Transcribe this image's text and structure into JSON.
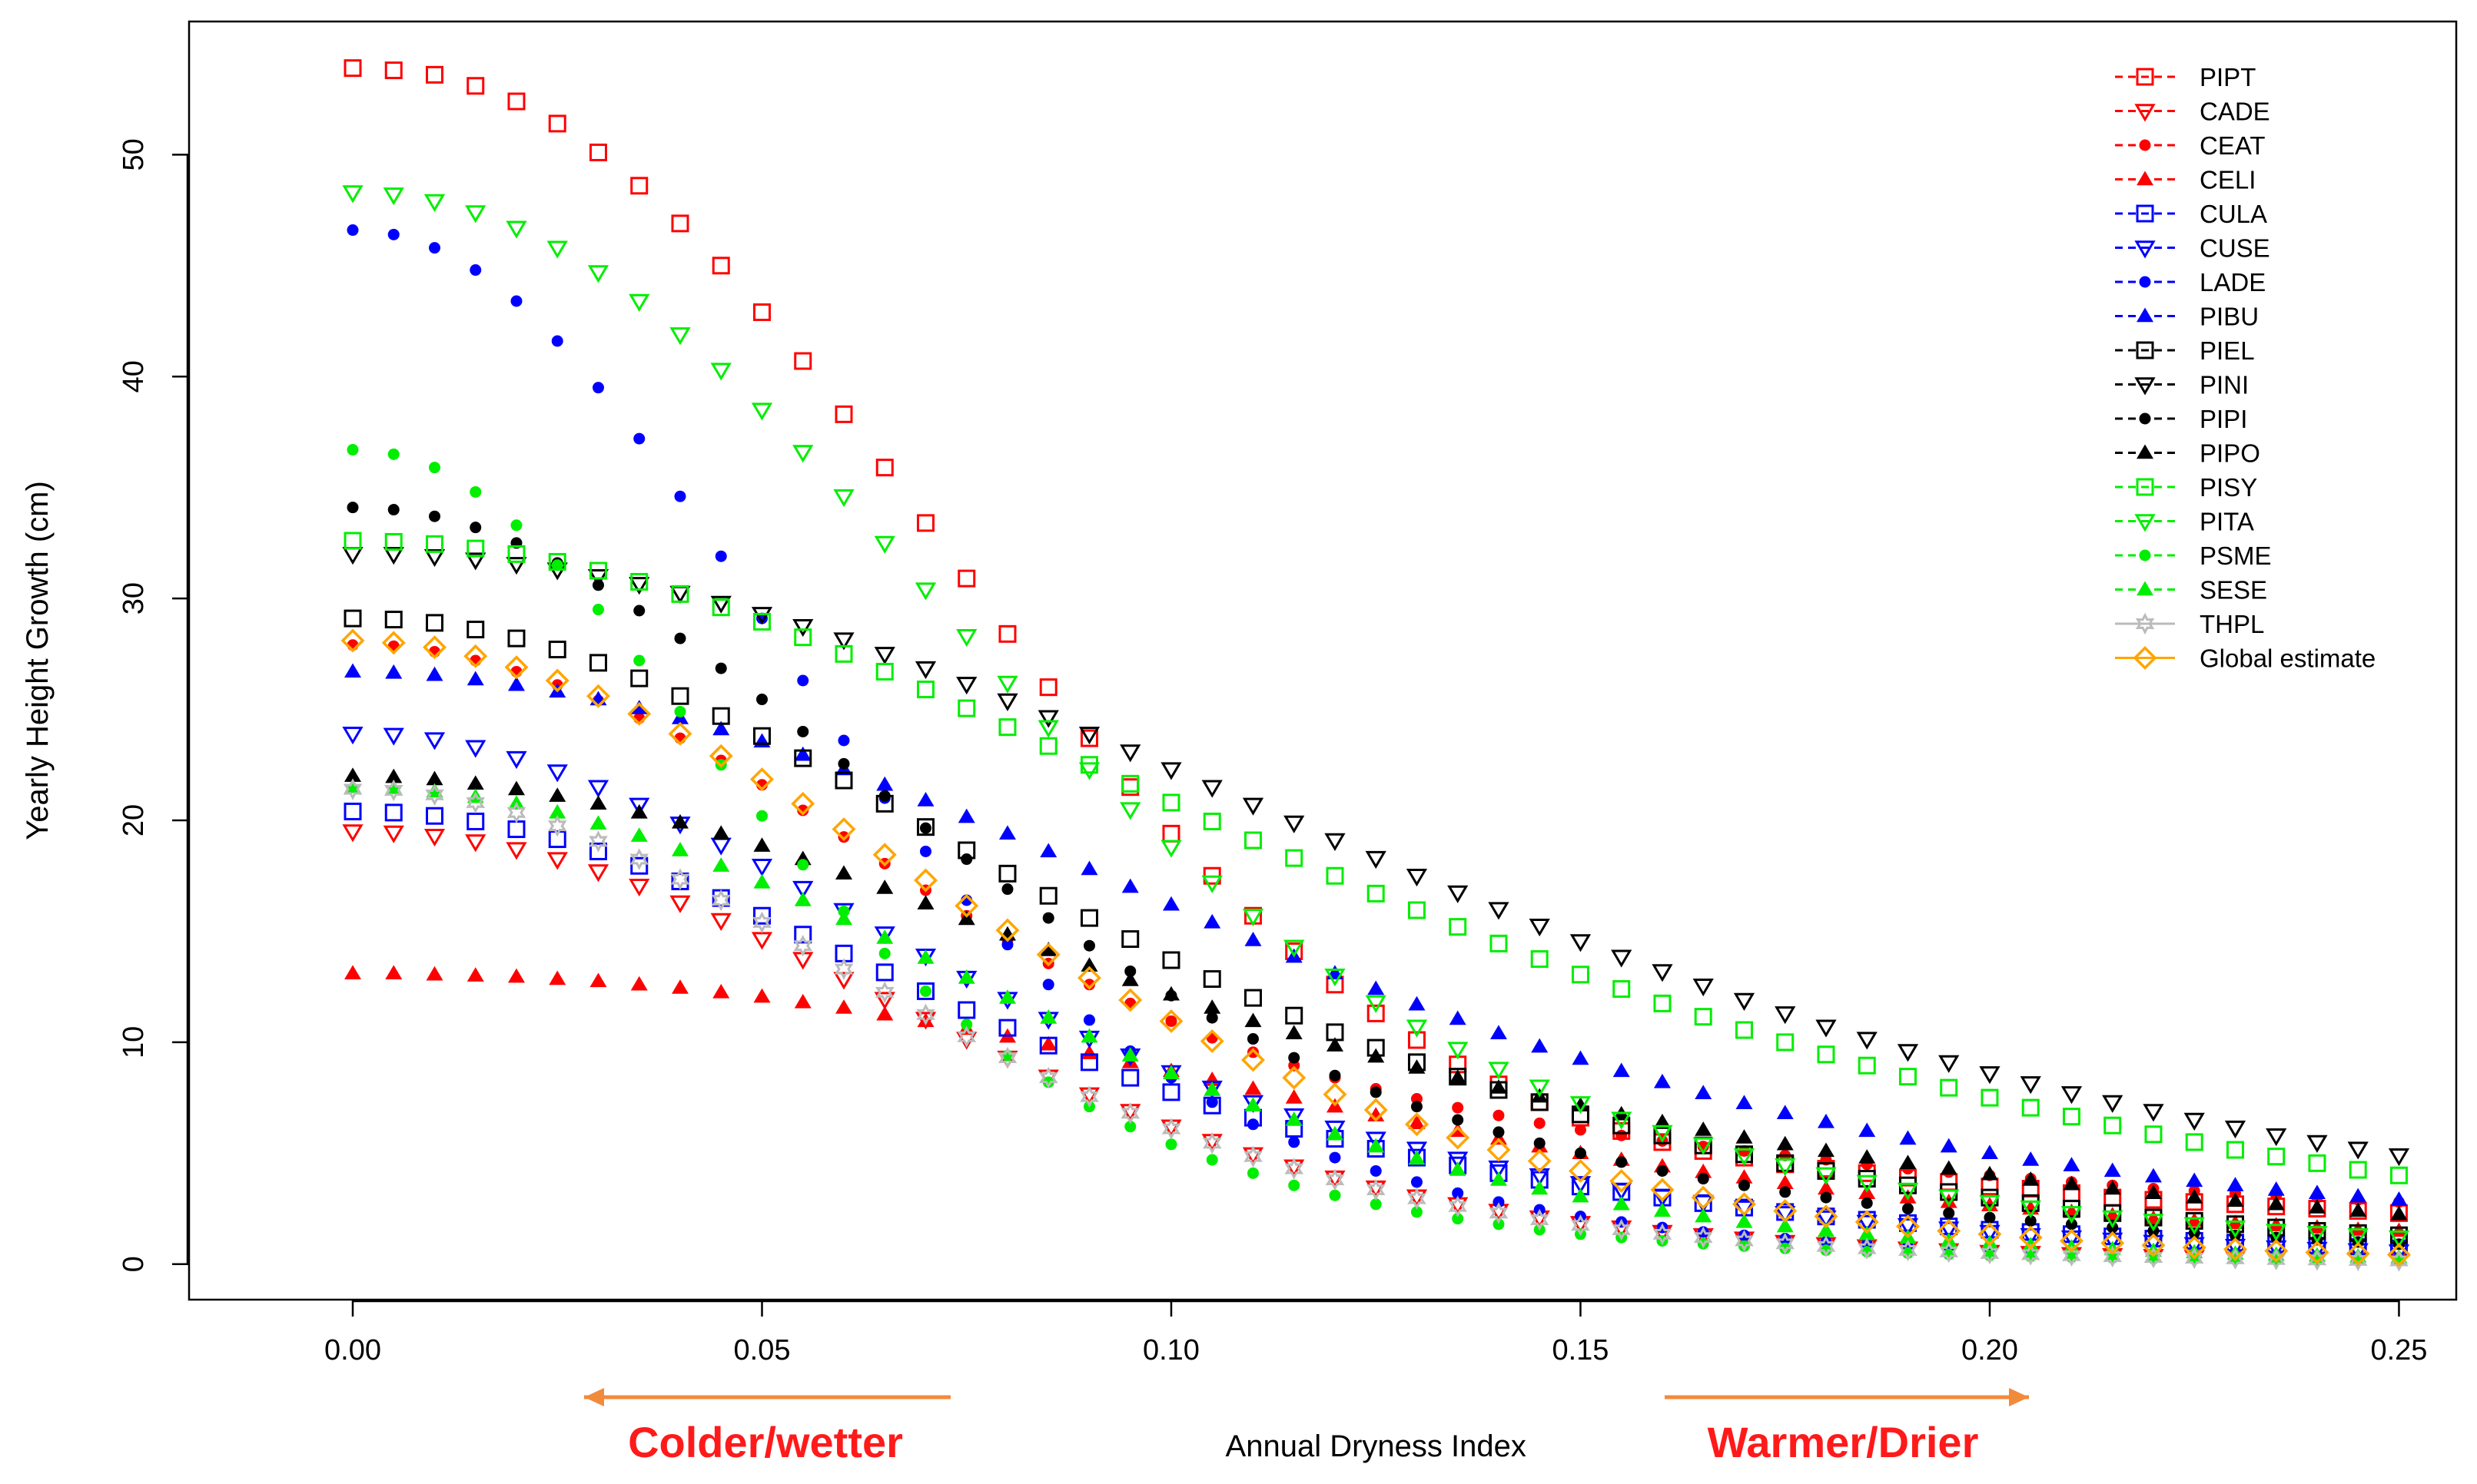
{
  "chart_data": {
    "type": "scatter",
    "title": "",
    "xlabel": "Annual Dryness Index",
    "ylabel": "Yearly Height Growth (cm)",
    "xlim": [
      -0.02,
      0.257
    ],
    "ylim": [
      -1.6,
      56
    ],
    "xticks": [
      0.0,
      0.05,
      0.1,
      0.15,
      0.2,
      0.25
    ],
    "xtick_labels": [
      "0.00",
      "0.05",
      "0.10",
      "0.15",
      "0.20",
      "0.25"
    ],
    "yticks": [
      0,
      10,
      20,
      30,
      40,
      50
    ],
    "ytick_labels": [
      "0",
      "10",
      "20",
      "30",
      "40",
      "50"
    ],
    "grid": false,
    "legend_position": "top-right",
    "annotations": {
      "left_arrow_text": "Colder/wetter",
      "right_arrow_text": "Warmer/Drier",
      "text_color": "#ff1a1a",
      "arrow_color": "#f28a3c"
    },
    "x": [
      0.0,
      0.005,
      0.01,
      0.015,
      0.02,
      0.025,
      0.03,
      0.035,
      0.04,
      0.045,
      0.05,
      0.055,
      0.06,
      0.065,
      0.07,
      0.075,
      0.08,
      0.085,
      0.09,
      0.095,
      0.1,
      0.105,
      0.11,
      0.115,
      0.12,
      0.125,
      0.13,
      0.135,
      0.14,
      0.145,
      0.15,
      0.155,
      0.16,
      0.165,
      0.17,
      0.175,
      0.18,
      0.185,
      0.19,
      0.195,
      0.2,
      0.205,
      0.21,
      0.215,
      0.22,
      0.225,
      0.23,
      0.235,
      0.24,
      0.245,
      0.25
    ],
    "series": [
      {
        "name": "PIPT",
        "color": "#ff0000",
        "marker": "square",
        "lty": "dashed",
        "values": [
          53.9,
          53.8,
          53.6,
          53.1,
          52.4,
          51.4,
          50.1,
          48.6,
          46.9,
          45.0,
          42.9,
          40.7,
          38.3,
          35.9,
          33.4,
          30.9,
          28.4,
          26.0,
          23.7,
          21.5,
          19.4,
          17.5,
          15.7,
          14.1,
          12.6,
          11.3,
          10.1,
          9.0,
          8.1,
          7.3,
          6.6,
          6.0,
          5.5,
          5.1,
          4.8,
          4.5,
          4.3,
          4.1,
          3.9,
          3.7,
          3.5,
          3.4,
          3.2,
          3.0,
          2.9,
          2.8,
          2.7,
          2.6,
          2.5,
          2.4,
          2.3
        ]
      },
      {
        "name": "CADE",
        "color": "#ff0000",
        "marker": "triangle-down",
        "lty": "dashed",
        "values": [
          19.5,
          19.45,
          19.3,
          19.05,
          18.7,
          18.25,
          17.7,
          17.05,
          16.3,
          15.5,
          14.65,
          13.75,
          12.85,
          11.95,
          11.05,
          10.15,
          9.3,
          8.45,
          7.65,
          6.9,
          6.2,
          5.55,
          4.95,
          4.4,
          3.9,
          3.45,
          3.05,
          2.7,
          2.4,
          2.1,
          1.85,
          1.65,
          1.45,
          1.3,
          1.15,
          1.0,
          0.9,
          0.8,
          0.7,
          0.62,
          0.55,
          0.5,
          0.45,
          0.4,
          0.36,
          0.32,
          0.29,
          0.26,
          0.24,
          0.22,
          0.2
        ]
      },
      {
        "name": "CEAT",
        "color": "#ff0000",
        "marker": "dot",
        "lty": "dashed",
        "values": [
          27.9,
          27.85,
          27.6,
          27.2,
          26.7,
          26.1,
          25.4,
          24.6,
          23.7,
          22.7,
          21.6,
          20.45,
          19.25,
          18.05,
          16.85,
          15.7,
          14.6,
          13.55,
          12.6,
          11.75,
          10.95,
          10.2,
          9.55,
          8.95,
          8.4,
          7.9,
          7.45,
          7.05,
          6.7,
          6.35,
          6.05,
          5.8,
          5.55,
          5.3,
          5.1,
          4.9,
          4.7,
          4.5,
          4.3,
          4.15,
          4.0,
          3.85,
          3.7,
          3.55,
          3.4,
          3.3,
          3.2,
          3.1,
          3.0,
          2.9,
          2.8
        ]
      },
      {
        "name": "CELI",
        "color": "#ff0000",
        "marker": "triangle-up",
        "lty": "dashed",
        "values": [
          13.1,
          13.1,
          13.05,
          13.0,
          12.95,
          12.85,
          12.75,
          12.6,
          12.45,
          12.25,
          12.05,
          11.8,
          11.55,
          11.25,
          10.95,
          10.6,
          10.25,
          9.9,
          9.5,
          9.1,
          8.7,
          8.3,
          7.9,
          7.5,
          7.1,
          6.7,
          6.35,
          6.0,
          5.65,
          5.3,
          5.0,
          4.7,
          4.4,
          4.15,
          3.9,
          3.65,
          3.4,
          3.2,
          3.0,
          2.8,
          2.65,
          2.5,
          2.35,
          2.2,
          2.05,
          1.95,
          1.85,
          1.75,
          1.65,
          1.55,
          1.5
        ]
      },
      {
        "name": "CULA",
        "color": "#0000ff",
        "marker": "square",
        "lty": "dashed",
        "values": [
          20.4,
          20.35,
          20.2,
          19.95,
          19.6,
          19.15,
          18.6,
          17.95,
          17.25,
          16.5,
          15.7,
          14.85,
          14.0,
          13.15,
          12.3,
          11.45,
          10.65,
          9.85,
          9.1,
          8.4,
          7.75,
          7.15,
          6.6,
          6.1,
          5.65,
          5.2,
          4.8,
          4.45,
          4.1,
          3.8,
          3.5,
          3.25,
          3.0,
          2.75,
          2.55,
          2.35,
          2.15,
          2.0,
          1.85,
          1.7,
          1.55,
          1.45,
          1.35,
          1.25,
          1.15,
          1.05,
          0.97,
          0.9,
          0.83,
          0.77,
          0.71
        ]
      },
      {
        "name": "CUSE",
        "color": "#0000ff",
        "marker": "triangle-down",
        "lty": "dashed",
        "values": [
          23.9,
          23.85,
          23.65,
          23.3,
          22.8,
          22.2,
          21.5,
          20.7,
          19.85,
          18.9,
          17.95,
          16.95,
          15.95,
          14.9,
          13.9,
          12.9,
          11.95,
          11.05,
          10.2,
          9.4,
          8.65,
          7.95,
          7.3,
          6.7,
          6.15,
          5.65,
          5.2,
          4.75,
          4.35,
          4.0,
          3.65,
          3.35,
          3.05,
          2.8,
          2.55,
          2.3,
          2.1,
          1.9,
          1.75,
          1.6,
          1.45,
          1.3,
          1.2,
          1.1,
          1.0,
          0.9,
          0.82,
          0.75,
          0.68,
          0.62,
          0.57
        ]
      },
      {
        "name": "LADE",
        "color": "#0000ff",
        "marker": "dot",
        "lty": "dashed",
        "values": [
          46.6,
          46.4,
          45.8,
          44.8,
          43.4,
          41.6,
          39.5,
          37.2,
          34.6,
          31.9,
          29.1,
          26.3,
          23.6,
          21.0,
          18.6,
          16.4,
          14.4,
          12.6,
          11.0,
          9.6,
          8.4,
          7.3,
          6.3,
          5.5,
          4.8,
          4.2,
          3.7,
          3.2,
          2.8,
          2.45,
          2.15,
          1.9,
          1.65,
          1.45,
          1.3,
          1.15,
          1.0,
          0.9,
          0.8,
          0.72,
          0.64,
          0.57,
          0.51,
          0.46,
          0.41,
          0.37,
          0.33,
          0.3,
          0.27,
          0.24,
          0.22
        ]
      },
      {
        "name": "PIBU",
        "color": "#0000ff",
        "marker": "triangle-up",
        "lty": "dashed",
        "values": [
          26.7,
          26.65,
          26.55,
          26.35,
          26.1,
          25.8,
          25.45,
          25.05,
          24.6,
          24.1,
          23.55,
          22.95,
          22.3,
          21.6,
          20.9,
          20.15,
          19.4,
          18.6,
          17.8,
          17.0,
          16.2,
          15.4,
          14.6,
          13.85,
          13.1,
          12.4,
          11.7,
          11.05,
          10.4,
          9.8,
          9.25,
          8.7,
          8.2,
          7.7,
          7.25,
          6.8,
          6.4,
          6.0,
          5.65,
          5.3,
          5.0,
          4.7,
          4.45,
          4.2,
          3.95,
          3.75,
          3.55,
          3.35,
          3.2,
          3.05,
          2.9
        ]
      },
      {
        "name": "PIEL",
        "color": "#000000",
        "marker": "square",
        "lty": "dashed",
        "values": [
          29.1,
          29.05,
          28.9,
          28.6,
          28.2,
          27.7,
          27.1,
          26.4,
          25.6,
          24.7,
          23.8,
          22.8,
          21.8,
          20.75,
          19.7,
          18.65,
          17.6,
          16.6,
          15.6,
          14.65,
          13.7,
          12.85,
          12.0,
          11.2,
          10.45,
          9.75,
          9.1,
          8.45,
          7.85,
          7.3,
          6.75,
          6.25,
          5.8,
          5.35,
          4.95,
          4.55,
          4.2,
          3.85,
          3.55,
          3.25,
          3.0,
          2.75,
          2.5,
          2.3,
          2.1,
          1.95,
          1.8,
          1.65,
          1.5,
          1.4,
          1.3
        ]
      },
      {
        "name": "PINI",
        "color": "#000000",
        "marker": "triangle-down",
        "lty": "dashed",
        "values": [
          32.0,
          32.0,
          31.9,
          31.75,
          31.55,
          31.3,
          31.0,
          30.65,
          30.25,
          29.8,
          29.3,
          28.75,
          28.15,
          27.5,
          26.85,
          26.15,
          25.4,
          24.65,
          23.9,
          23.1,
          22.3,
          21.5,
          20.7,
          19.9,
          19.1,
          18.3,
          17.5,
          16.75,
          16.0,
          15.25,
          14.55,
          13.85,
          13.2,
          12.55,
          11.9,
          11.3,
          10.7,
          10.15,
          9.6,
          9.1,
          8.6,
          8.15,
          7.7,
          7.3,
          6.9,
          6.5,
          6.15,
          5.8,
          5.5,
          5.2,
          4.9
        ]
      },
      {
        "name": "PIPI",
        "color": "#000000",
        "marker": "dot",
        "lty": "dashed",
        "values": [
          34.1,
          34.0,
          33.7,
          33.2,
          32.5,
          31.6,
          30.6,
          29.45,
          28.2,
          26.85,
          25.45,
          24.0,
          22.55,
          21.1,
          19.65,
          18.25,
          16.9,
          15.6,
          14.35,
          13.2,
          12.1,
          11.1,
          10.15,
          9.3,
          8.5,
          7.75,
          7.1,
          6.5,
          5.95,
          5.45,
          5.0,
          4.6,
          4.2,
          3.85,
          3.55,
          3.25,
          3.0,
          2.75,
          2.5,
          2.3,
          2.1,
          1.95,
          1.8,
          1.65,
          1.5,
          1.4,
          1.3,
          1.2,
          1.1,
          1.0,
          0.9
        ]
      },
      {
        "name": "PIPO",
        "color": "#000000",
        "marker": "triangle-up",
        "lty": "dashed",
        "values": [
          22.0,
          21.95,
          21.85,
          21.65,
          21.4,
          21.1,
          20.75,
          20.35,
          19.9,
          19.4,
          18.85,
          18.25,
          17.6,
          16.95,
          16.25,
          15.55,
          14.85,
          14.15,
          13.45,
          12.8,
          12.15,
          11.55,
          10.95,
          10.4,
          9.85,
          9.35,
          8.85,
          8.4,
          7.95,
          7.55,
          7.15,
          6.75,
          6.4,
          6.05,
          5.7,
          5.4,
          5.1,
          4.8,
          4.55,
          4.3,
          4.05,
          3.8,
          3.6,
          3.4,
          3.2,
          3.0,
          2.85,
          2.7,
          2.55,
          2.4,
          2.25
        ]
      },
      {
        "name": "PISY",
        "color": "#00ee00",
        "marker": "square",
        "lty": "dashed",
        "values": [
          32.6,
          32.55,
          32.45,
          32.25,
          32.0,
          31.65,
          31.25,
          30.75,
          30.2,
          29.6,
          28.95,
          28.25,
          27.5,
          26.7,
          25.9,
          25.05,
          24.2,
          23.35,
          22.5,
          21.65,
          20.8,
          19.95,
          19.1,
          18.3,
          17.5,
          16.7,
          15.95,
          15.2,
          14.45,
          13.75,
          13.05,
          12.4,
          11.75,
          11.15,
          10.55,
          10.0,
          9.45,
          8.95,
          8.45,
          7.95,
          7.5,
          7.05,
          6.65,
          6.25,
          5.85,
          5.5,
          5.15,
          4.85,
          4.55,
          4.25,
          4.0
        ]
      },
      {
        "name": "PITA",
        "color": "#00ee00",
        "marker": "triangle-down",
        "lty": "dashed",
        "values": [
          48.3,
          48.2,
          47.9,
          47.4,
          46.7,
          45.8,
          44.7,
          43.4,
          41.9,
          40.3,
          38.5,
          36.6,
          34.6,
          32.5,
          30.4,
          28.3,
          26.2,
          24.2,
          22.3,
          20.5,
          18.8,
          17.2,
          15.7,
          14.3,
          13.0,
          11.8,
          10.7,
          9.7,
          8.8,
          8.0,
          7.25,
          6.55,
          5.95,
          5.4,
          4.9,
          4.45,
          4.05,
          3.7,
          3.35,
          3.05,
          2.8,
          2.55,
          2.3,
          2.1,
          1.95,
          1.8,
          1.65,
          1.5,
          1.4,
          1.3,
          1.2
        ]
      },
      {
        "name": "PSME",
        "color": "#00ee00",
        "marker": "dot",
        "lty": "dashed",
        "values": [
          36.7,
          36.5,
          35.9,
          34.8,
          33.3,
          31.5,
          29.5,
          27.2,
          24.9,
          22.5,
          20.2,
          18.0,
          15.9,
          14.0,
          12.3,
          10.8,
          9.4,
          8.2,
          7.1,
          6.2,
          5.4,
          4.7,
          4.1,
          3.55,
          3.1,
          2.7,
          2.35,
          2.05,
          1.8,
          1.55,
          1.35,
          1.2,
          1.05,
          0.92,
          0.81,
          0.71,
          0.63,
          0.56,
          0.5,
          0.44,
          0.39,
          0.35,
          0.31,
          0.28,
          0.25,
          0.23,
          0.21,
          0.19,
          0.17,
          0.15,
          0.14
        ]
      },
      {
        "name": "SESE",
        "color": "#00ee00",
        "marker": "triangle-up",
        "lty": "dashed",
        "values": [
          21.5,
          21.45,
          21.3,
          21.05,
          20.75,
          20.35,
          19.85,
          19.3,
          18.65,
          17.95,
          17.2,
          16.4,
          15.55,
          14.7,
          13.8,
          12.9,
          12.0,
          11.1,
          10.25,
          9.4,
          8.6,
          7.85,
          7.15,
          6.5,
          5.85,
          5.3,
          4.75,
          4.25,
          3.8,
          3.4,
          3.05,
          2.7,
          2.4,
          2.15,
          1.9,
          1.7,
          1.5,
          1.35,
          1.2,
          1.05,
          0.95,
          0.85,
          0.75,
          0.67,
          0.6,
          0.53,
          0.47,
          0.42,
          0.38,
          0.34,
          0.3
        ]
      },
      {
        "name": "THPL",
        "color": "#bbbbbb",
        "marker": "star",
        "lty": "solid",
        "values": [
          21.4,
          21.35,
          21.15,
          20.8,
          20.35,
          19.75,
          19.05,
          18.25,
          17.35,
          16.4,
          15.4,
          14.35,
          13.3,
          12.25,
          11.25,
          10.25,
          9.3,
          8.4,
          7.55,
          6.8,
          6.1,
          5.45,
          4.85,
          4.3,
          3.8,
          3.35,
          2.95,
          2.6,
          2.3,
          2.0,
          1.75,
          1.55,
          1.35,
          1.2,
          1.05,
          0.92,
          0.8,
          0.7,
          0.62,
          0.55,
          0.48,
          0.43,
          0.38,
          0.34,
          0.3,
          0.27,
          0.24,
          0.21,
          0.19,
          0.17,
          0.15
        ]
      },
      {
        "name": "Global estimate",
        "color": "#ffa500",
        "marker": "diamond",
        "lty": "solid",
        "values": [
          28.1,
          28.0,
          27.8,
          27.4,
          26.9,
          26.3,
          25.6,
          24.8,
          23.9,
          22.9,
          21.85,
          20.75,
          19.6,
          18.45,
          17.3,
          16.15,
          15.05,
          13.95,
          12.9,
          11.9,
          10.95,
          10.05,
          9.2,
          8.4,
          7.65,
          6.95,
          6.3,
          5.7,
          5.15,
          4.65,
          4.2,
          3.75,
          3.35,
          3.0,
          2.7,
          2.4,
          2.15,
          1.9,
          1.7,
          1.5,
          1.35,
          1.2,
          1.05,
          0.95,
          0.85,
          0.75,
          0.67,
          0.6,
          0.53,
          0.47,
          0.42
        ]
      }
    ]
  }
}
